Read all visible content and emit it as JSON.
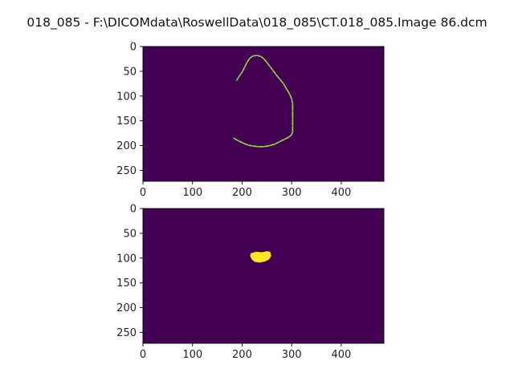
{
  "figure": {
    "title": "018_085 - F:\\DICOMdata\\RoswellData\\018_085\\CT.018_085.Image 86.dcm"
  },
  "chart_data": [
    {
      "type": "heatmap",
      "subplot": "top",
      "image_shape": [
        272,
        486
      ],
      "colormap": "viridis",
      "background_color": "#440154",
      "foreground_color": "#a8db34",
      "xlim": [
        0,
        486
      ],
      "ylim": [
        272,
        0
      ],
      "xticks": [
        0,
        100,
        200,
        300,
        400
      ],
      "yticks": [
        0,
        50,
        100,
        150,
        200,
        250
      ],
      "content": "contour",
      "contour_points": [
        [
          183,
          185
        ],
        [
          192,
          190
        ],
        [
          202,
          195
        ],
        [
          212,
          199
        ],
        [
          222,
          201
        ],
        [
          232,
          202
        ],
        [
          244,
          202
        ],
        [
          256,
          200
        ],
        [
          266,
          197
        ],
        [
          276,
          192
        ],
        [
          286,
          187
        ],
        [
          294,
          183
        ],
        [
          300,
          178
        ],
        [
          302,
          172
        ],
        [
          302,
          160
        ],
        [
          302,
          145
        ],
        [
          302,
          130
        ],
        [
          302,
          115
        ],
        [
          300,
          106
        ],
        [
          296,
          96
        ],
        [
          290,
          86
        ],
        [
          284,
          76
        ],
        [
          276,
          66
        ],
        [
          268,
          56
        ],
        [
          262,
          48
        ],
        [
          256,
          40
        ],
        [
          250,
          32
        ],
        [
          244,
          25
        ],
        [
          238,
          20
        ],
        [
          230,
          18
        ],
        [
          222,
          19
        ],
        [
          215,
          24
        ],
        [
          210,
          32
        ],
        [
          205,
          42
        ],
        [
          201,
          50
        ],
        [
          197,
          56
        ],
        [
          193,
          62
        ],
        [
          189,
          68
        ]
      ],
      "grid": false
    },
    {
      "type": "heatmap",
      "subplot": "bottom",
      "image_shape": [
        272,
        486
      ],
      "colormap": "viridis",
      "background_color": "#440154",
      "foreground_color": "#fde725",
      "xlim": [
        0,
        486
      ],
      "ylim": [
        272,
        0
      ],
      "xticks": [
        0,
        100,
        200,
        300,
        400
      ],
      "yticks": [
        0,
        50,
        100,
        150,
        200,
        250
      ],
      "content": "filled_region",
      "region_points": [
        [
          218,
          91
        ],
        [
          228,
          88
        ],
        [
          240,
          89
        ],
        [
          250,
          87
        ],
        [
          256,
          88
        ],
        [
          258,
          95
        ],
        [
          254,
          102
        ],
        [
          246,
          106
        ],
        [
          236,
          108
        ],
        [
          226,
          107
        ],
        [
          220,
          102
        ],
        [
          217,
          96
        ]
      ],
      "grid": false
    }
  ]
}
